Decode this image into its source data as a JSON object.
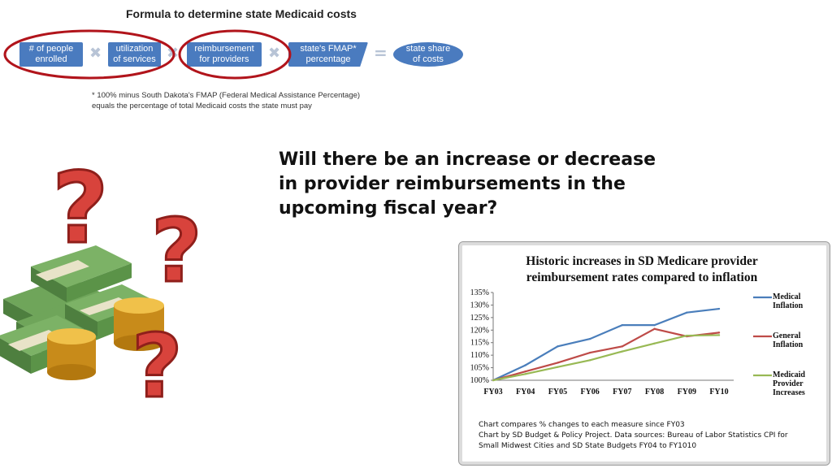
{
  "formula": {
    "title": "Formula to determine state Medicaid costs",
    "boxes": [
      "# of  people\nenrolled",
      "utilization\nof services",
      "reimbursement\nfor providers",
      "state's FMAP*\npercentage",
      "state share\nof costs"
    ],
    "footnote": "* 100% minus South Dakota's FMAP (Federal Medical Assistance Percentage)\nequals the percentage  of total Medicaid costs the state must pay",
    "colors": {
      "box": "#4a7bbf",
      "circle": "#b1141b"
    }
  },
  "question": "Will there be an increase or decrease in provider reimbursements in the upcoming fiscal year?",
  "illustration": {
    "icons": [
      "question-mark-icon",
      "money-stack-icon",
      "coin-stack-icon"
    ]
  },
  "chart_data": {
    "type": "line",
    "title": "Historic increases in SD Medicare provider\nreimbursement rates compared to inflation",
    "x": [
      "FY03",
      "FY04",
      "FY05",
      "FY06",
      "FY07",
      "FY08",
      "FY09",
      "FY10"
    ],
    "yticks": [
      "100%",
      "105%",
      "110%",
      "115%",
      "120%",
      "125%",
      "130%",
      "135%"
    ],
    "ylim": [
      100,
      135
    ],
    "series": [
      {
        "name": "Medical\nInflation",
        "color": "#4a7ebb",
        "values": [
          100,
          106,
          113.5,
          116.5,
          122,
          122,
          127,
          128.5
        ]
      },
      {
        "name": "General\nInflation",
        "color": "#be4b48",
        "values": [
          100,
          103.5,
          107,
          111,
          113.5,
          120.5,
          117.5,
          119
        ]
      },
      {
        "name": "Medicaid\nProvider\nIncreases",
        "color": "#98b954",
        "values": [
          100,
          102.5,
          105.3,
          108,
          111.5,
          114.7,
          117.8,
          118
        ]
      }
    ],
    "grid": false,
    "legend": "right",
    "notes": "Chart compares % changes to each measure since FY03\nChart by SD Budget & Policy Project.  Data sources:  Bureau of Labor Statistics CPI for\nSmall Midwest Cities and SD State Budgets FY04 to FY1010"
  }
}
